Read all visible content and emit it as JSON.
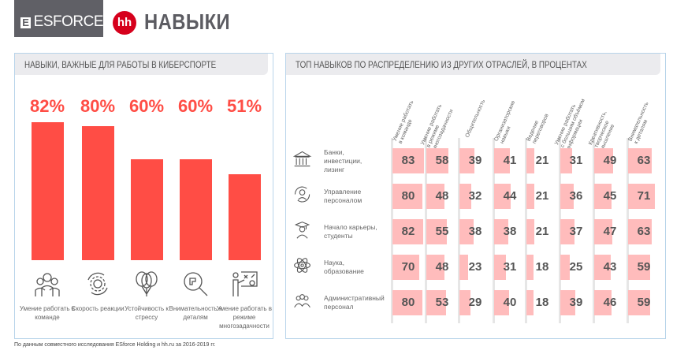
{
  "header": {
    "logo_text": "ESFORCE",
    "logo_mark": "E",
    "hh_mark": "hh",
    "title": "НАВЫКИ"
  },
  "left_panel": {
    "title": "НАВЫКИ, ВАЖНЫЕ ДЛЯ РАБОТЫ В КИБЕРСПОРТЕ"
  },
  "right_panel": {
    "title": "ТОП НАВЫКОВ ПО РАСПРЕДЕЛЕНИЮ ИЗ ДРУГИХ ОТРАСЛЕЙ, В ПРОЦЕНТАХ"
  },
  "footnote": "По данным совместного исследования ESforce Holding и hh.ru за 2016-2019 гг.",
  "chart_data": [
    {
      "type": "bar",
      "categories": [
        "Умение работать в команде",
        "Скорость реакции",
        "Устойчивость к стрессу",
        "Внимательность к деталям",
        "Умение работать в режиме многозадачности"
      ],
      "values": [
        82,
        80,
        60,
        60,
        51
      ],
      "value_labels": [
        "82%",
        "80%",
        "60%",
        "60%",
        "51%"
      ],
      "icons": [
        "team-icon",
        "gear-cycle-icon",
        "balloons-icon",
        "magnifier-puzzle-icon",
        "presenter-board-icon"
      ],
      "ylim": [
        0,
        100
      ],
      "color": "#ff4d45"
    },
    {
      "type": "table",
      "columns": [
        "Умение работать\nв команде",
        "Умение работать\nв режиме\nмногозадачности",
        "Общительность",
        "Организаторские\nнавыки",
        "Ведение\nпереговоров",
        "Умение работать\nс большим объёмом\nинформации",
        "Креативность,\nтворческое\nмышление",
        "Внимательность\nк деталям"
      ],
      "rows": [
        {
          "label": "Банки,\nинвестиции,\nлизинг",
          "icon": "bank-icon",
          "values": [
            83,
            58,
            39,
            41,
            21,
            31,
            49,
            63
          ]
        },
        {
          "label": "Управление\nперсоналом",
          "icon": "person-cycle-icon",
          "values": [
            80,
            48,
            32,
            44,
            21,
            36,
            45,
            71
          ]
        },
        {
          "label": "Начало карьеры,\nстуденты",
          "icon": "graduate-icon",
          "values": [
            82,
            55,
            38,
            38,
            21,
            37,
            47,
            63
          ]
        },
        {
          "label": "Наука,\nобразование",
          "icon": "atom-icon",
          "values": [
            70,
            48,
            23,
            31,
            18,
            25,
            43,
            59
          ]
        },
        {
          "label": "Административный\nперсонал",
          "icon": "staff-icon",
          "values": [
            80,
            53,
            29,
            40,
            18,
            39,
            46,
            59
          ]
        }
      ],
      "color": "#ffbcbc"
    }
  ]
}
